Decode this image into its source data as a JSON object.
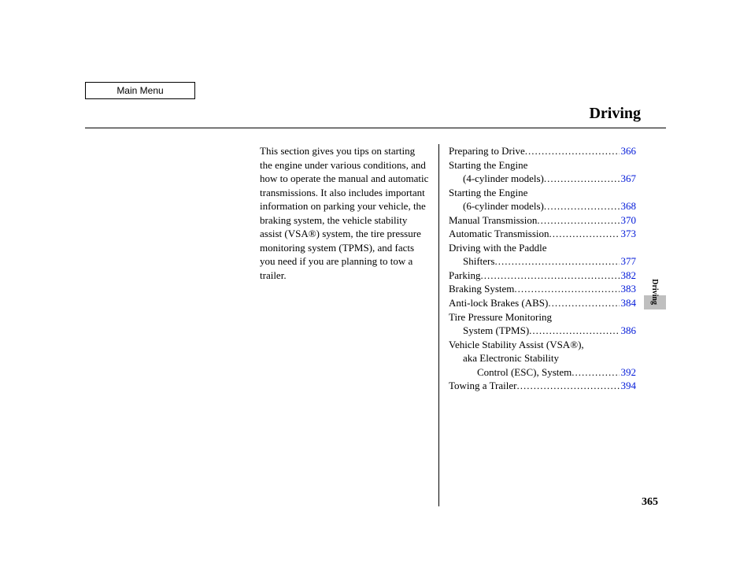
{
  "main_menu_label": "Main Menu",
  "section_title": "Driving",
  "intro_text": "This section gives you tips on starting the engine under various conditions, and how to operate the manual and automatic transmissions. It also includes important information on parking your vehicle, the braking system, the vehicle stability assist (VSA®) system, the tire pressure monitoring system (TPMS), and facts you need if you are planning to tow a trailer.",
  "toc": [
    {
      "lines": [
        {
          "text": "Preparing to Drive",
          "indent": 0
        }
      ],
      "page": "366"
    },
    {
      "lines": [
        {
          "text": "Starting the Engine",
          "indent": 0
        },
        {
          "text": "(4-cylinder models)",
          "indent": 1
        }
      ],
      "page": "367"
    },
    {
      "lines": [
        {
          "text": "Starting the Engine",
          "indent": 0
        },
        {
          "text": "(6-cylinder models)",
          "indent": 1
        }
      ],
      "page": "368"
    },
    {
      "lines": [
        {
          "text": "Manual Transmission",
          "indent": 0
        }
      ],
      "page": "370"
    },
    {
      "lines": [
        {
          "text": "Automatic Transmission",
          "indent": 0
        }
      ],
      "page": "373"
    },
    {
      "lines": [
        {
          "text": "Driving with the Paddle",
          "indent": 0
        },
        {
          "text": "Shifters",
          "indent": 1
        }
      ],
      "page": "377"
    },
    {
      "lines": [
        {
          "text": "Parking",
          "indent": 0
        }
      ],
      "page": "382"
    },
    {
      "lines": [
        {
          "text": "Braking System",
          "indent": 0
        }
      ],
      "page": "383"
    },
    {
      "lines": [
        {
          "text": "Anti-lock Brakes (ABS)",
          "indent": 0
        }
      ],
      "page": "384"
    },
    {
      "lines": [
        {
          "text": "Tire Pressure Monitoring",
          "indent": 0
        },
        {
          "text": "System (TPMS)",
          "indent": 1
        }
      ],
      "page": "386"
    },
    {
      "lines": [
        {
          "text": "Vehicle Stability Assist (VSA®),",
          "indent": 0
        },
        {
          "text": "aka Electronic Stability",
          "indent": 1
        },
        {
          "text": "Control (ESC), System",
          "indent": 2
        }
      ],
      "page": "392"
    },
    {
      "lines": [
        {
          "text": "Towing a Trailer",
          "indent": 0
        }
      ],
      "page": "394"
    }
  ],
  "side_tab_label": "Driving",
  "page_number": "365",
  "colors": {
    "link": "#0018d8",
    "tab_bg": "#bfbfbf",
    "text": "#000000",
    "bg": "#ffffff"
  },
  "typography": {
    "title_fontsize": 20,
    "body_fontsize": 13,
    "sidetab_fontsize": 10,
    "pagenum_fontsize": 14,
    "font_family": "Georgia, 'Times New Roman', serif"
  }
}
